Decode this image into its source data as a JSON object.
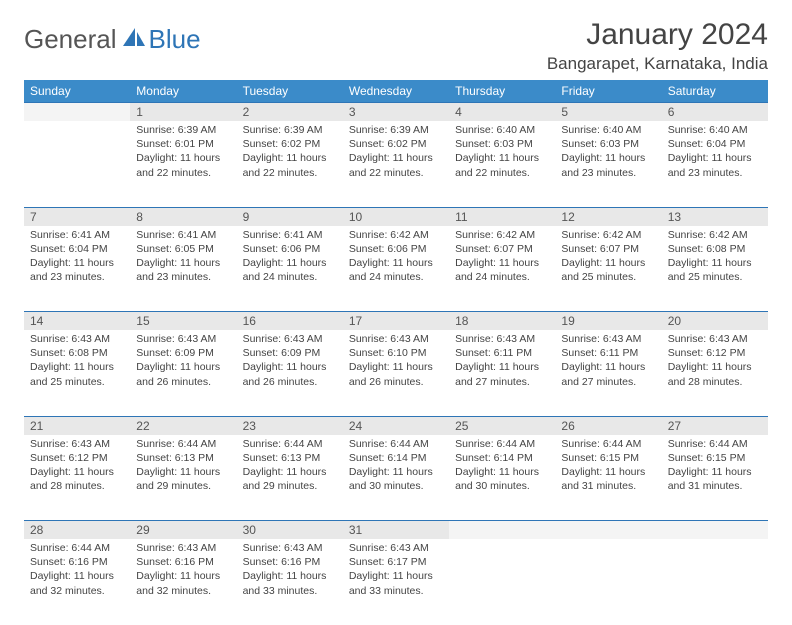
{
  "logo": {
    "text1": "General",
    "text2": "Blue"
  },
  "title": "January 2024",
  "location": "Bangarapet, Karnataka, India",
  "day_headers": [
    "Sunday",
    "Monday",
    "Tuesday",
    "Wednesday",
    "Thursday",
    "Friday",
    "Saturday"
  ],
  "colors": {
    "header_bg": "#3b8bc9",
    "header_text": "#ffffff",
    "daynum_bg": "#e8e8e8",
    "row_divider": "#2e75b6",
    "logo_blue": "#2e75b6",
    "text": "#444444"
  },
  "weeks": [
    [
      {
        "empty": true
      },
      {
        "num": "1",
        "sunrise": "Sunrise: 6:39 AM",
        "sunset": "Sunset: 6:01 PM",
        "daylight": "Daylight: 11 hours and 22 minutes."
      },
      {
        "num": "2",
        "sunrise": "Sunrise: 6:39 AM",
        "sunset": "Sunset: 6:02 PM",
        "daylight": "Daylight: 11 hours and 22 minutes."
      },
      {
        "num": "3",
        "sunrise": "Sunrise: 6:39 AM",
        "sunset": "Sunset: 6:02 PM",
        "daylight": "Daylight: 11 hours and 22 minutes."
      },
      {
        "num": "4",
        "sunrise": "Sunrise: 6:40 AM",
        "sunset": "Sunset: 6:03 PM",
        "daylight": "Daylight: 11 hours and 22 minutes."
      },
      {
        "num": "5",
        "sunrise": "Sunrise: 6:40 AM",
        "sunset": "Sunset: 6:03 PM",
        "daylight": "Daylight: 11 hours and 23 minutes."
      },
      {
        "num": "6",
        "sunrise": "Sunrise: 6:40 AM",
        "sunset": "Sunset: 6:04 PM",
        "daylight": "Daylight: 11 hours and 23 minutes."
      }
    ],
    [
      {
        "num": "7",
        "sunrise": "Sunrise: 6:41 AM",
        "sunset": "Sunset: 6:04 PM",
        "daylight": "Daylight: 11 hours and 23 minutes."
      },
      {
        "num": "8",
        "sunrise": "Sunrise: 6:41 AM",
        "sunset": "Sunset: 6:05 PM",
        "daylight": "Daylight: 11 hours and 23 minutes."
      },
      {
        "num": "9",
        "sunrise": "Sunrise: 6:41 AM",
        "sunset": "Sunset: 6:06 PM",
        "daylight": "Daylight: 11 hours and 24 minutes."
      },
      {
        "num": "10",
        "sunrise": "Sunrise: 6:42 AM",
        "sunset": "Sunset: 6:06 PM",
        "daylight": "Daylight: 11 hours and 24 minutes."
      },
      {
        "num": "11",
        "sunrise": "Sunrise: 6:42 AM",
        "sunset": "Sunset: 6:07 PM",
        "daylight": "Daylight: 11 hours and 24 minutes."
      },
      {
        "num": "12",
        "sunrise": "Sunrise: 6:42 AM",
        "sunset": "Sunset: 6:07 PM",
        "daylight": "Daylight: 11 hours and 25 minutes."
      },
      {
        "num": "13",
        "sunrise": "Sunrise: 6:42 AM",
        "sunset": "Sunset: 6:08 PM",
        "daylight": "Daylight: 11 hours and 25 minutes."
      }
    ],
    [
      {
        "num": "14",
        "sunrise": "Sunrise: 6:43 AM",
        "sunset": "Sunset: 6:08 PM",
        "daylight": "Daylight: 11 hours and 25 minutes."
      },
      {
        "num": "15",
        "sunrise": "Sunrise: 6:43 AM",
        "sunset": "Sunset: 6:09 PM",
        "daylight": "Daylight: 11 hours and 26 minutes."
      },
      {
        "num": "16",
        "sunrise": "Sunrise: 6:43 AM",
        "sunset": "Sunset: 6:09 PM",
        "daylight": "Daylight: 11 hours and 26 minutes."
      },
      {
        "num": "17",
        "sunrise": "Sunrise: 6:43 AM",
        "sunset": "Sunset: 6:10 PM",
        "daylight": "Daylight: 11 hours and 26 minutes."
      },
      {
        "num": "18",
        "sunrise": "Sunrise: 6:43 AM",
        "sunset": "Sunset: 6:11 PM",
        "daylight": "Daylight: 11 hours and 27 minutes."
      },
      {
        "num": "19",
        "sunrise": "Sunrise: 6:43 AM",
        "sunset": "Sunset: 6:11 PM",
        "daylight": "Daylight: 11 hours and 27 minutes."
      },
      {
        "num": "20",
        "sunrise": "Sunrise: 6:43 AM",
        "sunset": "Sunset: 6:12 PM",
        "daylight": "Daylight: 11 hours and 28 minutes."
      }
    ],
    [
      {
        "num": "21",
        "sunrise": "Sunrise: 6:43 AM",
        "sunset": "Sunset: 6:12 PM",
        "daylight": "Daylight: 11 hours and 28 minutes."
      },
      {
        "num": "22",
        "sunrise": "Sunrise: 6:44 AM",
        "sunset": "Sunset: 6:13 PM",
        "daylight": "Daylight: 11 hours and 29 minutes."
      },
      {
        "num": "23",
        "sunrise": "Sunrise: 6:44 AM",
        "sunset": "Sunset: 6:13 PM",
        "daylight": "Daylight: 11 hours and 29 minutes."
      },
      {
        "num": "24",
        "sunrise": "Sunrise: 6:44 AM",
        "sunset": "Sunset: 6:14 PM",
        "daylight": "Daylight: 11 hours and 30 minutes."
      },
      {
        "num": "25",
        "sunrise": "Sunrise: 6:44 AM",
        "sunset": "Sunset: 6:14 PM",
        "daylight": "Daylight: 11 hours and 30 minutes."
      },
      {
        "num": "26",
        "sunrise": "Sunrise: 6:44 AM",
        "sunset": "Sunset: 6:15 PM",
        "daylight": "Daylight: 11 hours and 31 minutes."
      },
      {
        "num": "27",
        "sunrise": "Sunrise: 6:44 AM",
        "sunset": "Sunset: 6:15 PM",
        "daylight": "Daylight: 11 hours and 31 minutes."
      }
    ],
    [
      {
        "num": "28",
        "sunrise": "Sunrise: 6:44 AM",
        "sunset": "Sunset: 6:16 PM",
        "daylight": "Daylight: 11 hours and 32 minutes."
      },
      {
        "num": "29",
        "sunrise": "Sunrise: 6:43 AM",
        "sunset": "Sunset: 6:16 PM",
        "daylight": "Daylight: 11 hours and 32 minutes."
      },
      {
        "num": "30",
        "sunrise": "Sunrise: 6:43 AM",
        "sunset": "Sunset: 6:16 PM",
        "daylight": "Daylight: 11 hours and 33 minutes."
      },
      {
        "num": "31",
        "sunrise": "Sunrise: 6:43 AM",
        "sunset": "Sunset: 6:17 PM",
        "daylight": "Daylight: 11 hours and 33 minutes."
      },
      {
        "empty": true
      },
      {
        "empty": true
      },
      {
        "empty": true
      }
    ]
  ]
}
